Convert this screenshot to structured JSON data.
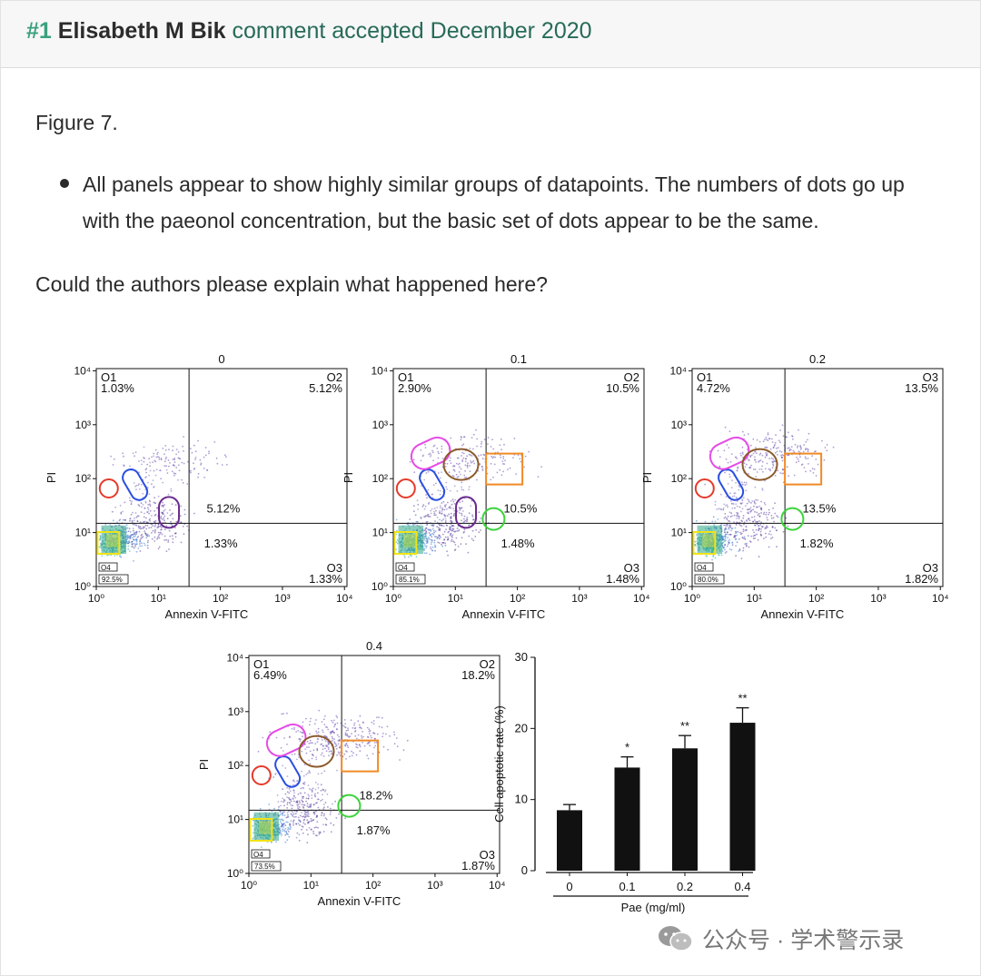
{
  "comment": {
    "number": "#1",
    "author": "Elisabeth M Bik",
    "status": "comment accepted December 2020"
  },
  "body": {
    "figure_label": "Figure 7.",
    "bullets": [
      "All panels appear to show highly similar groups of datapoints. The numbers of dots go up with the paeonol concentration, but the basic set of dots appear to be the same."
    ],
    "question": "Could the authors please explain what happened here?"
  },
  "figure": {
    "flow_panels": [
      {
        "title": "0",
        "q1_label": "O1",
        "q1_value": "1.03%",
        "q2_label": "O2",
        "q2_value": "5.12%",
        "q3_label": "O3",
        "q3_value": "1.33%",
        "q4_label": "O4",
        "q4_value": "92.5%",
        "upper_note": "5.12%",
        "lower_note": "1.33%"
      },
      {
        "title": "0.1",
        "q1_label": "O1",
        "q1_value": "2.90%",
        "q2_label": "O2",
        "q2_value": "10.5%",
        "q3_label": "O3",
        "q3_value": "1.48%",
        "q4_label": "O4",
        "q4_value": "85.1%",
        "upper_note": "10.5%",
        "lower_note": "1.48%"
      },
      {
        "title": "0.2",
        "q1_label": "O1",
        "q1_value": "4.72%",
        "q2_label": "O3",
        "q2_value": "13.5%",
        "q3_label": "O3",
        "q3_value": "1.82%",
        "q4_label": "O4",
        "q4_value": "80.0%",
        "upper_note": "13.5%",
        "lower_note": "1.82%"
      },
      {
        "title": "0.4",
        "q1_label": "O1",
        "q1_value": "6.49%",
        "q2_label": "O2",
        "q2_value": "18.2%",
        "q3_label": "O3",
        "q3_value": "1.87%",
        "q4_label": "O4",
        "q4_value": "73.5%",
        "upper_note": "18.2%",
        "lower_note": "1.87%"
      }
    ],
    "flow_axes": {
      "x_label": "Annexin V-FITC",
      "y_label": "PI",
      "x_ticks": [
        "10⁰",
        "10¹",
        "10²",
        "10³",
        "10⁴"
      ],
      "y_ticks": [
        "10⁰",
        "10¹",
        "10²",
        "10³",
        "10⁴"
      ]
    },
    "annotation_colors": {
      "magenta": "#e64ce6",
      "blue": "#2a4fe0",
      "brown": "#8b5a2b",
      "orange": "#f08a24",
      "purple": "#6a2a8e",
      "red": "#e53a2a",
      "green": "#3ad43a",
      "yellow": "#f2e318"
    }
  },
  "chart_data": {
    "type": "bar",
    "categories": [
      "0",
      "0.1",
      "0.2",
      "0.4"
    ],
    "values": [
      8.5,
      14.5,
      17.2,
      20.8
    ],
    "errors": [
      0.8,
      1.5,
      1.8,
      2.1
    ],
    "significance": [
      "",
      "*",
      "**",
      "**"
    ],
    "xlabel": "Pae (mg/ml)",
    "ylabel": "Cell apoptotic rate (%)",
    "ylim": [
      0,
      30
    ],
    "yticks": [
      0,
      10,
      20,
      30
    ],
    "bar_color": "#111111"
  },
  "watermark": {
    "text": "公众号 · 学术警示录"
  }
}
